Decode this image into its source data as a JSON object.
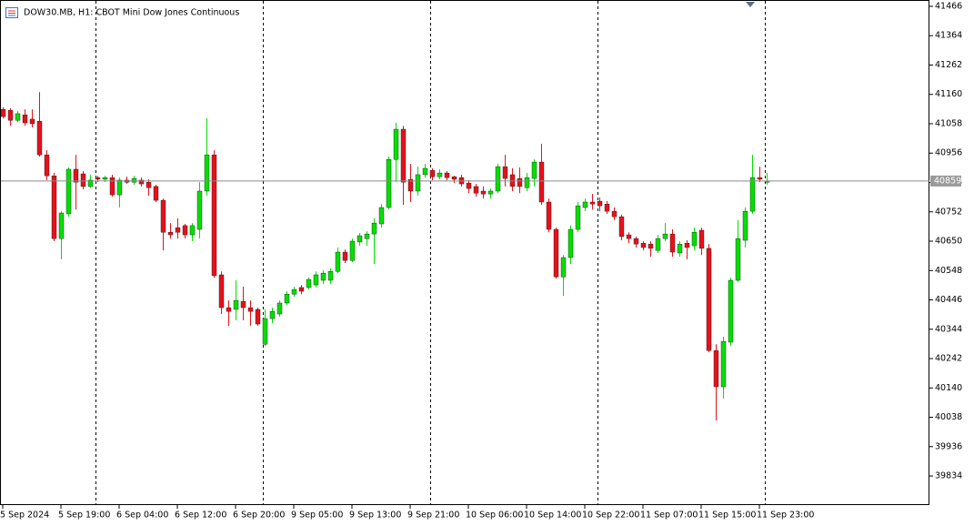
{
  "chart_data": {
    "type": "candlestick",
    "title": "DOW30.MB, H1:  CBOT Mini Dow Jones Continuous",
    "categories": [
      "5 Sep 2024",
      null,
      null,
      null,
      null,
      null,
      null,
      null,
      "5 Sep 19:00",
      null,
      null,
      null,
      null,
      null,
      null,
      null,
      "6 Sep 04:00",
      null,
      null,
      null,
      null,
      null,
      null,
      null,
      "6 Sep 12:00",
      null,
      null,
      null,
      null,
      null,
      null,
      null,
      "6 Sep 20:00",
      null,
      null,
      null,
      null,
      null,
      null,
      null,
      "9 Sep 05:00",
      null,
      null,
      null,
      null,
      null,
      null,
      null,
      "9 Sep 13:00",
      null,
      null,
      null,
      null,
      null,
      null,
      null,
      "9 Sep 21:00",
      null,
      null,
      null,
      null,
      null,
      null,
      null,
      "10 Sep 06:00",
      null,
      null,
      null,
      null,
      null,
      null,
      null,
      "10 Sep 14:00",
      null,
      null,
      null,
      null,
      null,
      null,
      null,
      "10 Sep 22:00",
      null,
      null,
      null,
      null,
      null,
      null,
      null,
      "11 Sep 07:00",
      null,
      null,
      null,
      null,
      null,
      null,
      null,
      "11 Sep 15:00",
      null,
      null,
      null,
      null,
      null,
      null,
      null,
      "11 Sep 23:00",
      null
    ],
    "open": [
      41108,
      41105,
      41070,
      41089,
      41074,
      41067,
      40950,
      40877,
      40659,
      40745,
      40900,
      40884,
      40840,
      40871,
      40865,
      40871,
      40811,
      40862,
      40855,
      40862,
      40855,
      40840,
      40792,
      40681,
      40697,
      40704,
      40672,
      40691,
      40824,
      40950,
      40533,
      40419,
      40413,
      40441,
      40419,
      40413,
      40292,
      40381,
      40397,
      40435,
      40466,
      40489,
      40489,
      40498,
      40514,
      40514,
      40545,
      40612,
      40583,
      40647,
      40659,
      40675,
      40710,
      40767,
      40934,
      41039,
      40865,
      40824,
      40881,
      40896,
      40874,
      40887,
      40874,
      40871,
      40852,
      40840,
      40824,
      40814,
      40824,
      40909,
      40881,
      40868,
      40836,
      40868,
      40925,
      40786,
      40691,
      40526,
      40593,
      40691,
      40767,
      40786,
      40789,
      40779,
      40754,
      40735,
      40672,
      40659,
      40643,
      40640,
      40618,
      40659,
      40675,
      40609,
      40643,
      40634,
      40688,
      40625,
      40270,
      40144,
      40299,
      40514,
      40653,
      40754,
      40871,
      40855
    ],
    "high": [
      41115,
      41112,
      41102,
      41108,
      41108,
      41168,
      40966,
      40887,
      40754,
      40906,
      40950,
      40893,
      40881,
      40877,
      40877,
      40881,
      40871,
      40874,
      40877,
      40871,
      40865,
      40846,
      40798,
      40713,
      40729,
      40710,
      40713,
      40855,
      41077,
      40966,
      40545,
      40444,
      40514,
      40492,
      40444,
      40419,
      40413,
      40419,
      40444,
      40476,
      40492,
      40498,
      40523,
      40545,
      40549,
      40555,
      40628,
      40621,
      40659,
      40678,
      40685,
      40729,
      40779,
      40944,
      41061,
      41051,
      40919,
      40909,
      40919,
      40903,
      40900,
      40893,
      40877,
      40881,
      40862,
      40849,
      40840,
      40833,
      40919,
      40950,
      40903,
      40906,
      40887,
      40934,
      40988,
      40798,
      40697,
      40602,
      40704,
      40786,
      40798,
      40814,
      40802,
      40789,
      40767,
      40742,
      40681,
      40666,
      40650,
      40650,
      40672,
      40713,
      40691,
      40650,
      40653,
      40697,
      40697,
      40640,
      40292,
      40318,
      40523,
      40723,
      40767,
      40950,
      40909,
      40887
    ],
    "low": [
      41077,
      41051,
      41064,
      41051,
      41045,
      40944,
      40862,
      40650,
      40587,
      40735,
      40760,
      40830,
      40836,
      40855,
      40855,
      40805,
      40767,
      40849,
      40846,
      40840,
      40808,
      40786,
      40618,
      40659,
      40659,
      40659,
      40650,
      40659,
      40808,
      40523,
      40397,
      40356,
      40375,
      40375,
      40356,
      40356,
      40286,
      40365,
      40387,
      40428,
      40457,
      40466,
      40482,
      40489,
      40501,
      40501,
      40539,
      40574,
      40577,
      40634,
      40634,
      40571,
      40697,
      40760,
      40855,
      40776,
      40786,
      40808,
      40871,
      40862,
      40865,
      40862,
      40852,
      40840,
      40817,
      40805,
      40798,
      40798,
      40817,
      40840,
      40824,
      40817,
      40824,
      40840,
      40776,
      40681,
      40520,
      40460,
      40571,
      40681,
      40754,
      40760,
      40754,
      40745,
      40723,
      40653,
      40643,
      40628,
      40618,
      40596,
      40609,
      40650,
      40596,
      40596,
      40587,
      40618,
      40602,
      40264,
      40027,
      40103,
      40286,
      40508,
      40628,
      40745,
      40855,
      40846
    ],
    "close": [
      41083,
      41070,
      41093,
      41061,
      41058,
      40950,
      40877,
      40659,
      40748,
      40900,
      40855,
      40840,
      40862,
      40865,
      40871,
      40811,
      40862,
      40855,
      40868,
      40849,
      40836,
      40792,
      40681,
      40672,
      40681,
      40672,
      40704,
      40824,
      40950,
      40530,
      40419,
      40406,
      40444,
      40419,
      40406,
      40362,
      40381,
      40406,
      40435,
      40466,
      40482,
      40476,
      40517,
      40533,
      40539,
      40545,
      40612,
      40583,
      40650,
      40669,
      40675,
      40713,
      40767,
      40934,
      41039,
      40855,
      40824,
      40881,
      40903,
      40874,
      40887,
      40871,
      40865,
      40849,
      40833,
      40817,
      40814,
      40824,
      40909,
      40868,
      40840,
      40840,
      40871,
      40925,
      40786,
      40691,
      40526,
      40593,
      40691,
      40773,
      40786,
      40779,
      40773,
      40754,
      40735,
      40666,
      40659,
      40640,
      40628,
      40625,
      40659,
      40675,
      40612,
      40640,
      40628,
      40681,
      40625,
      40270,
      40144,
      40302,
      40514,
      40659,
      40754,
      40871,
      40865,
      40859
    ],
    "up_color": "#00e000",
    "down_color": "#e8101a",
    "current_price": 40859,
    "ylim": [
      39733,
      41488
    ],
    "yticks": [
      41466,
      41364,
      41262,
      41160,
      41058,
      40956,
      40854,
      40752,
      40650,
      40548,
      40446,
      40344,
      40242,
      40140,
      40038,
      39936,
      39834
    ]
  }
}
